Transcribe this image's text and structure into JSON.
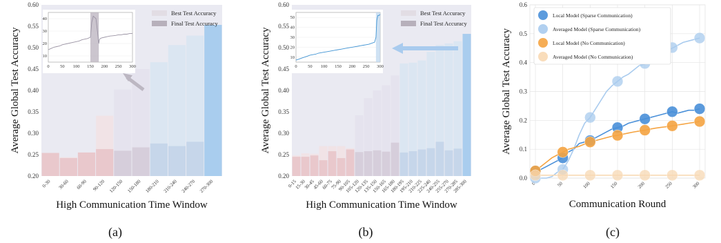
{
  "panels": [
    {
      "label": "(a)"
    },
    {
      "label": "(b)"
    },
    {
      "label": "(c)"
    }
  ],
  "chart_data": [
    {
      "type": "bar",
      "xlabel": "High Communication Time Window",
      "ylabel": "Average Global Test Accuracy",
      "ylim": [
        0.2,
        0.6
      ],
      "yticks": [
        0.2,
        0.25,
        0.3,
        0.35,
        0.4,
        0.45,
        0.5,
        0.55,
        0.6
      ],
      "legend_position": "top-right",
      "categories": [
        "0-30",
        "30-60",
        "60-90",
        "90-120",
        "120-150",
        "150-180",
        "180-210",
        "210-240",
        "240-270",
        "270-300"
      ],
      "series": [
        {
          "name": "Best Test Accuracy",
          "values": [
            0.254,
            0.244,
            0.255,
            0.341,
            0.402,
            0.45,
            0.466,
            0.506,
            0.528,
            0.553
          ]
        },
        {
          "name": "Final Test Accuracy",
          "values": [
            0.254,
            0.242,
            0.255,
            0.263,
            0.259,
            0.267,
            0.276,
            0.27,
            0.28,
            0.553
          ]
        }
      ],
      "inset": {
        "xticks": [
          0,
          50,
          100,
          150,
          200,
          250,
          300
        ],
        "yticks": [
          10,
          20,
          30,
          40
        ],
        "xlim": [
          0,
          300
        ],
        "ylim": [
          5,
          45
        ],
        "highlight": [
          150,
          180
        ],
        "x": [
          0,
          10,
          20,
          30,
          40,
          50,
          60,
          70,
          80,
          90,
          100,
          110,
          120,
          130,
          140,
          150,
          152,
          155,
          158,
          160,
          165,
          170,
          175,
          180,
          182,
          185,
          190,
          200,
          210,
          220,
          230,
          240,
          250,
          260,
          270,
          280,
          290,
          300
        ],
        "y": [
          15,
          16,
          17,
          17.5,
          18,
          19,
          19.5,
          20,
          20.5,
          21,
          21.5,
          22,
          23,
          23.5,
          24,
          25,
          30,
          37,
          40,
          42,
          41,
          40,
          30,
          20,
          23,
          24,
          24.5,
          25,
          25.5,
          26,
          26.2,
          26.5,
          27,
          27,
          27.5,
          27.5,
          28,
          28
        ]
      }
    },
    {
      "type": "bar",
      "xlabel": "High Communication Time Window",
      "ylabel": "Average Global Test Accuracy",
      "ylim": [
        0.2,
        0.6
      ],
      "yticks": [
        0.2,
        0.25,
        0.3,
        0.35,
        0.4,
        0.45,
        0.5,
        0.55,
        0.6
      ],
      "legend_position": "top-right",
      "categories": [
        "0-15",
        "15-30",
        "30-45",
        "45-60",
        "60-75",
        "75-90",
        "90-105",
        "105-120",
        "120-135",
        "135-150",
        "150-165",
        "165-180",
        "180-195",
        "195-210",
        "210-225",
        "225-240",
        "240-255",
        "255-270",
        "270-285",
        "285-300"
      ],
      "series": [
        {
          "name": "Best Test Accuracy",
          "values": [
            0.248,
            0.253,
            0.252,
            0.27,
            0.27,
            0.27,
            0.265,
            0.342,
            0.382,
            0.4,
            0.412,
            0.435,
            0.463,
            0.465,
            0.47,
            0.49,
            0.506,
            0.51,
            0.515,
            0.532
          ]
        },
        {
          "name": "Final Test Accuracy",
          "values": [
            0.245,
            0.245,
            0.248,
            0.237,
            0.258,
            0.242,
            0.262,
            0.256,
            0.258,
            0.26,
            0.257,
            0.278,
            0.255,
            0.258,
            0.262,
            0.265,
            0.28,
            0.26,
            0.264,
            0.532
          ]
        }
      ],
      "inset": {
        "xticks": [
          0,
          50,
          100,
          150,
          200,
          250,
          300
        ],
        "yticks": [
          10,
          20,
          30,
          40,
          50
        ],
        "xlim": [
          0,
          300
        ],
        "ylim": [
          5,
          55
        ],
        "highlight": [
          285,
          300
        ],
        "x": [
          0,
          10,
          20,
          30,
          40,
          50,
          60,
          70,
          80,
          90,
          100,
          110,
          120,
          130,
          140,
          150,
          160,
          170,
          180,
          190,
          200,
          210,
          220,
          230,
          240,
          250,
          260,
          270,
          280,
          285,
          288,
          292,
          296,
          300
        ],
        "y": [
          7,
          8,
          9,
          10,
          11,
          12,
          12.5,
          13,
          14,
          14.5,
          15,
          15.5,
          16,
          16.5,
          17,
          17.5,
          18,
          18.5,
          19,
          19.5,
          20,
          20.5,
          21,
          21.5,
          22,
          22.5,
          23,
          24,
          25,
          30,
          47,
          52,
          52,
          53
        ]
      }
    },
    {
      "type": "line",
      "xlabel": "Communication Round",
      "ylabel": "Average Global Test Accuracy",
      "ylim": [
        0.0,
        0.6
      ],
      "xlim": [
        0,
        300
      ],
      "yticks": [
        0.0,
        0.1,
        0.2,
        0.3,
        0.4,
        0.5,
        0.6
      ],
      "xticks": [
        0,
        50,
        100,
        150,
        200,
        250,
        300
      ],
      "grid": true,
      "legend_position": "top-left",
      "series": [
        {
          "name": "Local Model (Sparse Communication)",
          "color": "#4a90d9",
          "x": [
            0,
            10,
            20,
            30,
            40,
            50,
            60,
            70,
            80,
            90,
            100,
            110,
            120,
            130,
            140,
            150,
            160,
            170,
            180,
            190,
            200,
            210,
            220,
            230,
            240,
            250,
            260,
            270,
            280,
            290,
            300
          ],
          "y": [
            0.025,
            0.03,
            0.04,
            0.05,
            0.06,
            0.07,
            0.09,
            0.1,
            0.12,
            0.125,
            0.13,
            0.14,
            0.15,
            0.16,
            0.17,
            0.175,
            0.18,
            0.19,
            0.195,
            0.2,
            0.205,
            0.21,
            0.215,
            0.22,
            0.225,
            0.23,
            0.225,
            0.23,
            0.235,
            0.235,
            0.24
          ],
          "markers_x": [
            0,
            50,
            100,
            150,
            200,
            250,
            300
          ],
          "markers_y": [
            0.025,
            0.07,
            0.13,
            0.175,
            0.205,
            0.23,
            0.24
          ]
        },
        {
          "name": "Averaged Model (Sparse Communication)",
          "color": "#a9cbee",
          "x": [
            0,
            10,
            20,
            30,
            40,
            50,
            60,
            70,
            80,
            90,
            100,
            110,
            120,
            130,
            140,
            150,
            160,
            170,
            180,
            190,
            200,
            210,
            220,
            230,
            240,
            250,
            260,
            270,
            280,
            290,
            300
          ],
          "y": [
            0.0,
            0.0,
            0.0,
            0.005,
            0.02,
            0.03,
            0.06,
            0.1,
            0.15,
            0.19,
            0.21,
            0.24,
            0.27,
            0.3,
            0.32,
            0.335,
            0.35,
            0.36,
            0.375,
            0.39,
            0.395,
            0.41,
            0.42,
            0.43,
            0.44,
            0.45,
            0.46,
            0.47,
            0.475,
            0.48,
            0.485
          ],
          "markers_x": [
            0,
            50,
            100,
            150,
            200,
            250,
            300
          ],
          "markers_y": [
            0.0,
            0.03,
            0.21,
            0.335,
            0.397,
            0.452,
            0.485
          ]
        },
        {
          "name": "Local Model (No Communication)",
          "color": "#f5a442",
          "x": [
            0,
            10,
            20,
            30,
            40,
            50,
            60,
            70,
            80,
            90,
            100,
            110,
            120,
            130,
            140,
            150,
            160,
            170,
            180,
            190,
            200,
            210,
            220,
            230,
            240,
            250,
            260,
            270,
            280,
            290,
            300
          ],
          "y": [
            0.025,
            0.04,
            0.055,
            0.07,
            0.08,
            0.09,
            0.1,
            0.105,
            0.11,
            0.118,
            0.125,
            0.13,
            0.135,
            0.14,
            0.145,
            0.148,
            0.152,
            0.156,
            0.16,
            0.163,
            0.166,
            0.17,
            0.173,
            0.176,
            0.178,
            0.181,
            0.184,
            0.187,
            0.19,
            0.193,
            0.196
          ],
          "markers_x": [
            0,
            50,
            100,
            150,
            200,
            250,
            300
          ],
          "markers_y": [
            0.025,
            0.09,
            0.125,
            0.148,
            0.166,
            0.181,
            0.196
          ]
        },
        {
          "name": "Averaged Model (No Communication)",
          "color": "#f8d9b4",
          "x": [
            0,
            50,
            100,
            150,
            200,
            250,
            300
          ],
          "y": [
            0.01,
            0.01,
            0.01,
            0.01,
            0.01,
            0.01,
            0.01
          ],
          "markers_x": [
            0,
            50,
            100,
            150,
            200,
            250,
            300
          ],
          "markers_y": [
            0.01,
            0.01,
            0.01,
            0.01,
            0.01,
            0.01,
            0.01
          ]
        }
      ]
    }
  ]
}
